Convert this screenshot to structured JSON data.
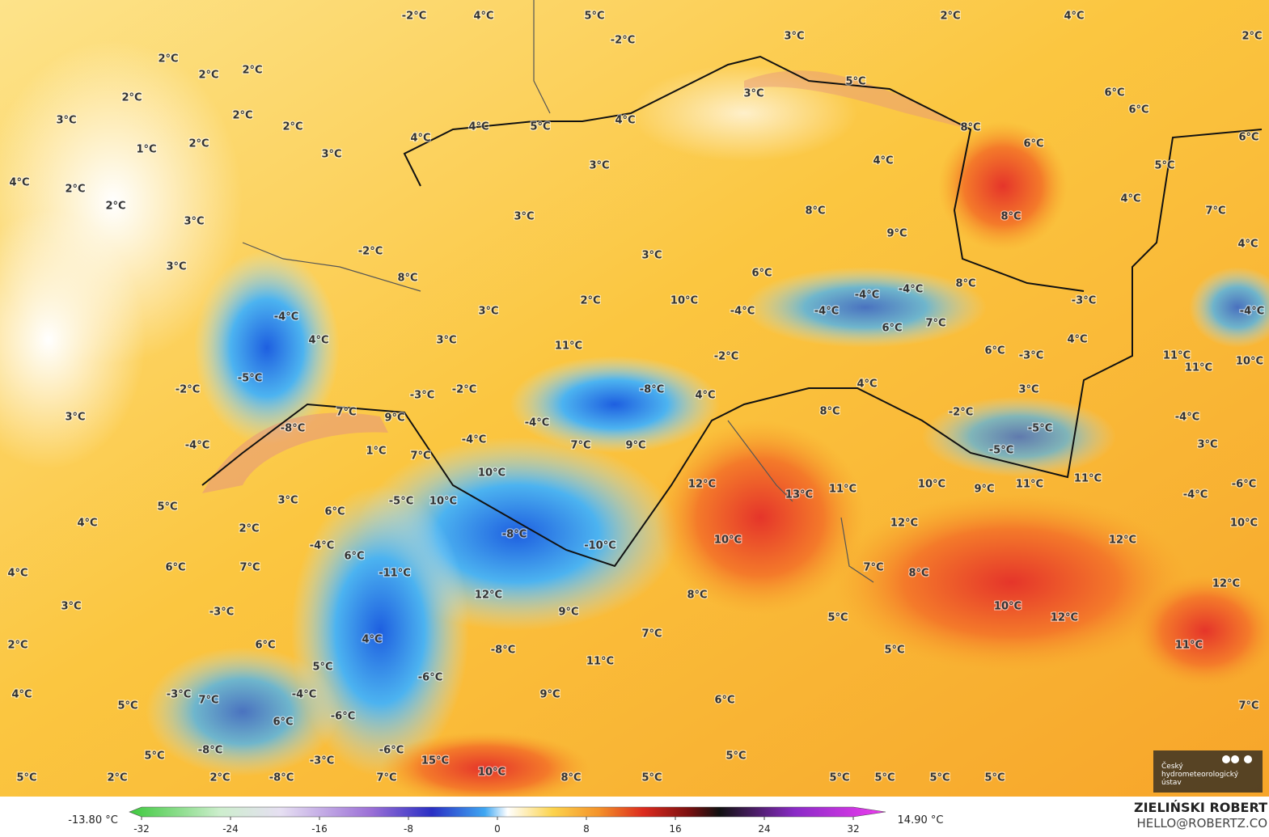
{
  "map": {
    "labels": [
      "-2°C",
      "4°C",
      "5°C",
      "-2°C",
      "3°C",
      "2°C",
      "4°C",
      "2°C",
      "2°C",
      "2°C",
      "2°C",
      "2°C",
      "5°C",
      "3°C",
      "6°C",
      "6°C",
      "3°C",
      "2°C",
      "2°C",
      "4°C",
      "5°C",
      "4°C",
      "8°C",
      "6°C",
      "6°C",
      "1°C",
      "2°C",
      "3°C",
      "4°C",
      "4°C",
      "3°C",
      "5°C",
      "4°C",
      "2°C",
      "2°C",
      "3°C",
      "3°C",
      "8°C",
      "8°C",
      "4°C",
      "7°C",
      "-2°C",
      "3°C",
      "9°C",
      "4°C",
      "3°C",
      "8°C",
      "6°C",
      "8°C",
      "-4°C",
      "-4°C",
      "-3°C",
      "-4°C",
      "-4°C",
      "2°C",
      "10°C",
      "3°C",
      "-4°C",
      "-4°C",
      "4°C",
      "3°C",
      "11°C",
      "6°C",
      "7°C",
      "4°C",
      "-2°C",
      "6°C",
      "-3°C",
      "11°C",
      "10°C",
      "11°C",
      "-5°C",
      "-2°C",
      "-3°C",
      "-2°C",
      "-8°C",
      "4°C",
      "4°C",
      "3°C",
      "3°C",
      "7°C",
      "9°C",
      "-4°C",
      "8°C",
      "-2°C",
      "-5°C",
      "-4°C",
      "-8°C",
      "-4°C",
      "1°C",
      "-4°C",
      "7°C",
      "9°C",
      "-5°C",
      "3°C",
      "7°C",
      "10°C",
      "12°C",
      "13°C",
      "11°C",
      "10°C",
      "9°C",
      "11°C",
      "11°C",
      "-4°C",
      "-6°C",
      "5°C",
      "3°C",
      "6°C",
      "-5°C",
      "10°C",
      "4°C",
      "2°C",
      "12°C",
      "10°C",
      "-4°C",
      "-8°C",
      "-10°C",
      "10°C",
      "12°C",
      "6°C",
      "6°C",
      "7°C",
      "4°C",
      "-11°C",
      "7°C",
      "8°C",
      "12°C",
      "12°C",
      "8°C",
      "3°C",
      "-3°C",
      "9°C",
      "10°C",
      "12°C",
      "5°C",
      "7°C",
      "4°C",
      "6°C",
      "2°C",
      "5°C",
      "11°C",
      "-8°C",
      "5°C",
      "11°C",
      "-6°C",
      "-4°C",
      "9°C",
      "6°C",
      "4°C",
      "-3°C",
      "7°C",
      "5°C",
      "-6°C",
      "6°C",
      "7°C",
      "-8°C",
      "-6°C",
      "5°C",
      "-3°C",
      "15°C",
      "5°C",
      "10°C",
      "-8°C",
      "2°C",
      "2°C",
      "5°C",
      "7°C",
      "8°C",
      "5°C",
      "5°C",
      "5°C",
      "5°C",
      "5°C"
    ],
    "logo": "Český hydrometeorologický ústav",
    "legend": {
      "min_label": "-13.80 °C",
      "max_label": "14.90 °C",
      "ticks": [
        -32,
        -24,
        -16,
        -8,
        0,
        8,
        16,
        24,
        32
      ]
    },
    "author": "ZIELIŃSKI ROBERT",
    "contact": "HELLO@ROBERTZ.CO"
  }
}
